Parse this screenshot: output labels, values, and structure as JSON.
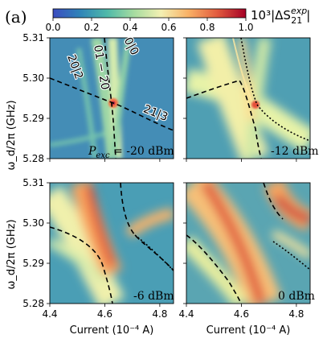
{
  "figure": {
    "panel_label": "(a)",
    "colorbar": {
      "label": "10³|ΔS",
      "label_sup": "exp",
      "label_sub": "21",
      "label_end": "|",
      "ticks": [
        "0.0",
        "0.2",
        "0.4",
        "0.6",
        "0.8",
        "1.0"
      ],
      "range": [
        0,
        1
      ],
      "colormap": [
        "#3b4cc0",
        "#2f84b8",
        "#4fb9a9",
        "#a6dca0",
        "#f3f0b2",
        "#f9b267",
        "#e25c3f",
        "#a50026"
      ]
    }
  },
  "chart_data": [
    {
      "type": "heatmap",
      "panel": "top-left",
      "annotation": "P_exc = -20 dBm",
      "annotation_prefix": "P",
      "annotation_sub": "exc",
      "annotation_suffix": " = -20 dBm",
      "xlim": [
        4.4,
        4.85
      ],
      "ylim": [
        5.28,
        5.31
      ],
      "xlabel": "",
      "ylabel": "ω_d/2π (GHz)",
      "x_ticks": [],
      "y_ticks": [
        "5.28",
        "5.29",
        "5.30",
        "5.31"
      ],
      "transition_labels": [
        {
          "text": "20|2",
          "x": 4.48,
          "y": 5.3025,
          "rotate": 70
        },
        {
          "text": "01 − 20",
          "x": 4.575,
          "y": 5.3025,
          "rotate": 80
        },
        {
          "text": "0|0",
          "x": 4.685,
          "y": 5.3075,
          "rotate": 62
        },
        {
          "text": "21|3",
          "x": 4.78,
          "y": 5.2905,
          "rotate": 22
        }
      ]
    },
    {
      "type": "heatmap",
      "panel": "top-right",
      "annotation": "-12 dBm",
      "xlim": [
        4.4,
        4.85
      ],
      "ylim": [
        5.28,
        5.31
      ],
      "x_ticks": [],
      "y_ticks": []
    },
    {
      "type": "heatmap",
      "panel": "bottom-left",
      "annotation": "-6 dBm",
      "xlim": [
        4.4,
        4.85
      ],
      "ylim": [
        5.28,
        5.31
      ],
      "xlabel": "Current (10⁻⁴ A)",
      "ylabel": "ω_d/2π (GHz)",
      "x_ticks": [
        "4.4",
        "4.6",
        "4.8"
      ],
      "y_ticks": [
        "5.28",
        "5.29",
        "5.30",
        "5.31"
      ]
    },
    {
      "type": "heatmap",
      "panel": "bottom-right",
      "annotation": "0 dBm",
      "xlim": [
        4.4,
        4.85
      ],
      "ylim": [
        5.28,
        5.31
      ],
      "xlabel": "Current (10⁻⁴ A)",
      "x_ticks": [
        "4.4",
        "4.6",
        "4.8"
      ],
      "y_ticks": []
    }
  ]
}
